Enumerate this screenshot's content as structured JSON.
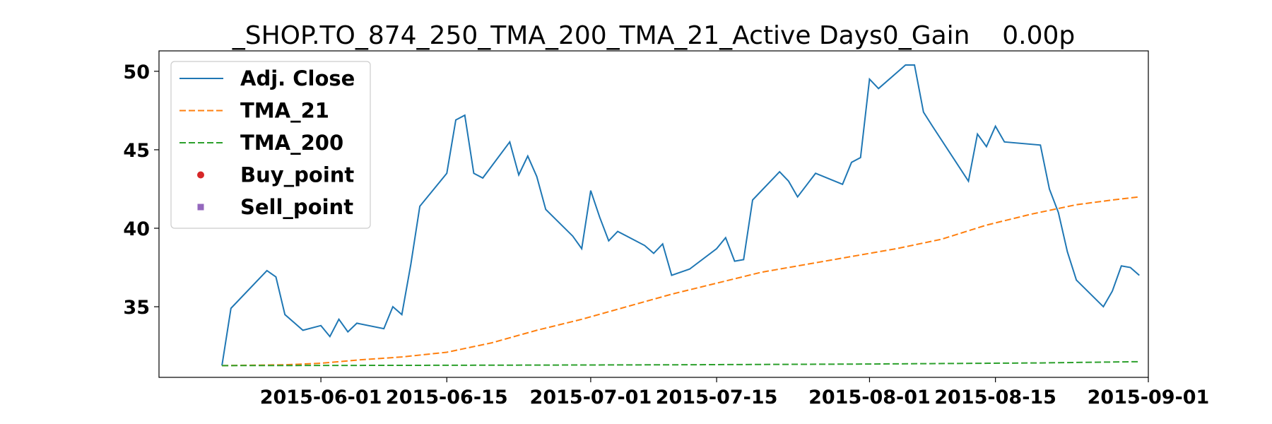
{
  "chart_data": {
    "type": "line",
    "title": "_SHOP.TO_874_250_TMA_200_TMA_21_Active Days0_Gain    0.00p",
    "xlabel": "",
    "ylabel": "",
    "x_axis_type": "date",
    "xlim": [
      "2015-05-14",
      "2015-09-01"
    ],
    "ylim": [
      30.5,
      51.3
    ],
    "x_ticks": [
      {
        "date": "2015-06-01",
        "label": "2015-06-01"
      },
      {
        "date": "2015-06-15",
        "label": "2015-06-15"
      },
      {
        "date": "2015-07-01",
        "label": "2015-07-01"
      },
      {
        "date": "2015-07-15",
        "label": "2015-07-15"
      },
      {
        "date": "2015-08-01",
        "label": "2015-08-01"
      },
      {
        "date": "2015-08-15",
        "label": "2015-08-15"
      },
      {
        "date": "2015-09-01",
        "label": "2015-09-01"
      }
    ],
    "y_ticks": [
      {
        "value": 35,
        "label": "35"
      },
      {
        "value": 40,
        "label": "40"
      },
      {
        "value": 45,
        "label": "45"
      },
      {
        "value": 50,
        "label": "50"
      }
    ],
    "grid": false,
    "legend_position": "top-left",
    "series": [
      {
        "name": "Adj. Close",
        "color": "#1f77b4",
        "style": "solid",
        "marker": "none",
        "points": [
          [
            "2015-05-21",
            31.25
          ],
          [
            "2015-05-22",
            34.9
          ],
          [
            "2015-05-26",
            37.3
          ],
          [
            "2015-05-27",
            36.9
          ],
          [
            "2015-05-28",
            34.5
          ],
          [
            "2015-05-29",
            34.0
          ],
          [
            "2015-05-30",
            33.5
          ],
          [
            "2015-06-01",
            33.8
          ],
          [
            "2015-06-02",
            33.1
          ],
          [
            "2015-06-03",
            34.2
          ],
          [
            "2015-06-04",
            33.4
          ],
          [
            "2015-06-05",
            33.95
          ],
          [
            "2015-06-08",
            33.6
          ],
          [
            "2015-06-09",
            35.0
          ],
          [
            "2015-06-10",
            34.5
          ],
          [
            "2015-06-11",
            37.7
          ],
          [
            "2015-06-12",
            41.4
          ],
          [
            "2015-06-15",
            43.5
          ],
          [
            "2015-06-16",
            46.9
          ],
          [
            "2015-06-17",
            47.2
          ],
          [
            "2015-06-18",
            43.5
          ],
          [
            "2015-06-19",
            43.2
          ],
          [
            "2015-06-22",
            45.5
          ],
          [
            "2015-06-23",
            43.4
          ],
          [
            "2015-06-24",
            44.6
          ],
          [
            "2015-06-25",
            43.3
          ],
          [
            "2015-06-26",
            41.2
          ],
          [
            "2015-06-29",
            39.5
          ],
          [
            "2015-06-30",
            38.7
          ],
          [
            "2015-07-01",
            42.4
          ],
          [
            "2015-07-02",
            40.7
          ],
          [
            "2015-07-03",
            39.2
          ],
          [
            "2015-07-04",
            39.8
          ],
          [
            "2015-07-07",
            38.9
          ],
          [
            "2015-07-08",
            38.4
          ],
          [
            "2015-07-09",
            39.0
          ],
          [
            "2015-07-10",
            37.0
          ],
          [
            "2015-07-12",
            37.4
          ],
          [
            "2015-07-15",
            38.7
          ],
          [
            "2015-07-16",
            39.4
          ],
          [
            "2015-07-17",
            37.9
          ],
          [
            "2015-07-18",
            38.0
          ],
          [
            "2015-07-19",
            41.8
          ],
          [
            "2015-07-22",
            43.6
          ],
          [
            "2015-07-23",
            43.0
          ],
          [
            "2015-07-24",
            42.0
          ],
          [
            "2015-07-26",
            43.5
          ],
          [
            "2015-07-29",
            42.8
          ],
          [
            "2015-07-30",
            44.2
          ],
          [
            "2015-07-31",
            44.5
          ],
          [
            "2015-08-01",
            49.5
          ],
          [
            "2015-08-02",
            48.9
          ],
          [
            "2015-08-05",
            50.4
          ],
          [
            "2015-08-06",
            50.4
          ],
          [
            "2015-08-07",
            47.4
          ],
          [
            "2015-08-08",
            46.5
          ],
          [
            "2015-08-12",
            43.0
          ],
          [
            "2015-08-13",
            46.0
          ],
          [
            "2015-08-14",
            45.2
          ],
          [
            "2015-08-15",
            46.5
          ],
          [
            "2015-08-16",
            45.5
          ],
          [
            "2015-08-20",
            45.3
          ],
          [
            "2015-08-21",
            42.5
          ],
          [
            "2015-08-22",
            41.0
          ],
          [
            "2015-08-23",
            38.5
          ],
          [
            "2015-08-24",
            36.7
          ],
          [
            "2015-08-27",
            35.0
          ],
          [
            "2015-08-28",
            36.0
          ],
          [
            "2015-08-29",
            37.6
          ],
          [
            "2015-08-30",
            37.5
          ],
          [
            "2015-08-31",
            37.0
          ]
        ]
      },
      {
        "name": "TMA_21",
        "color": "#ff7f0e",
        "style": "dashed",
        "marker": "none",
        "points": [
          [
            "2015-05-21",
            31.25
          ],
          [
            "2015-05-28",
            31.3
          ],
          [
            "2015-06-01",
            31.4
          ],
          [
            "2015-06-05",
            31.6
          ],
          [
            "2015-06-10",
            31.8
          ],
          [
            "2015-06-15",
            32.1
          ],
          [
            "2015-06-20",
            32.7
          ],
          [
            "2015-06-25",
            33.5
          ],
          [
            "2015-06-30",
            34.2
          ],
          [
            "2015-07-05",
            35.0
          ],
          [
            "2015-07-10",
            35.8
          ],
          [
            "2015-07-15",
            36.5
          ],
          [
            "2015-07-20",
            37.2
          ],
          [
            "2015-07-25",
            37.7
          ],
          [
            "2015-07-30",
            38.2
          ],
          [
            "2015-08-04",
            38.7
          ],
          [
            "2015-08-09",
            39.3
          ],
          [
            "2015-08-14",
            40.2
          ],
          [
            "2015-08-19",
            40.9
          ],
          [
            "2015-08-24",
            41.5
          ],
          [
            "2015-08-28",
            41.8
          ],
          [
            "2015-08-31",
            42.0
          ]
        ]
      },
      {
        "name": "TMA_200",
        "color": "#2ca02c",
        "style": "dashed",
        "marker": "none",
        "points": [
          [
            "2015-05-21",
            31.25
          ],
          [
            "2015-06-15",
            31.27
          ],
          [
            "2015-07-10",
            31.3
          ],
          [
            "2015-08-01",
            31.35
          ],
          [
            "2015-08-20",
            31.42
          ],
          [
            "2015-08-31",
            31.5
          ]
        ]
      },
      {
        "name": "Buy_point",
        "color": "#d62728",
        "style": "none",
        "marker": "circle",
        "points": []
      },
      {
        "name": "Sell_point",
        "color": "#9467bd",
        "style": "none",
        "marker": "square",
        "points": []
      }
    ]
  }
}
